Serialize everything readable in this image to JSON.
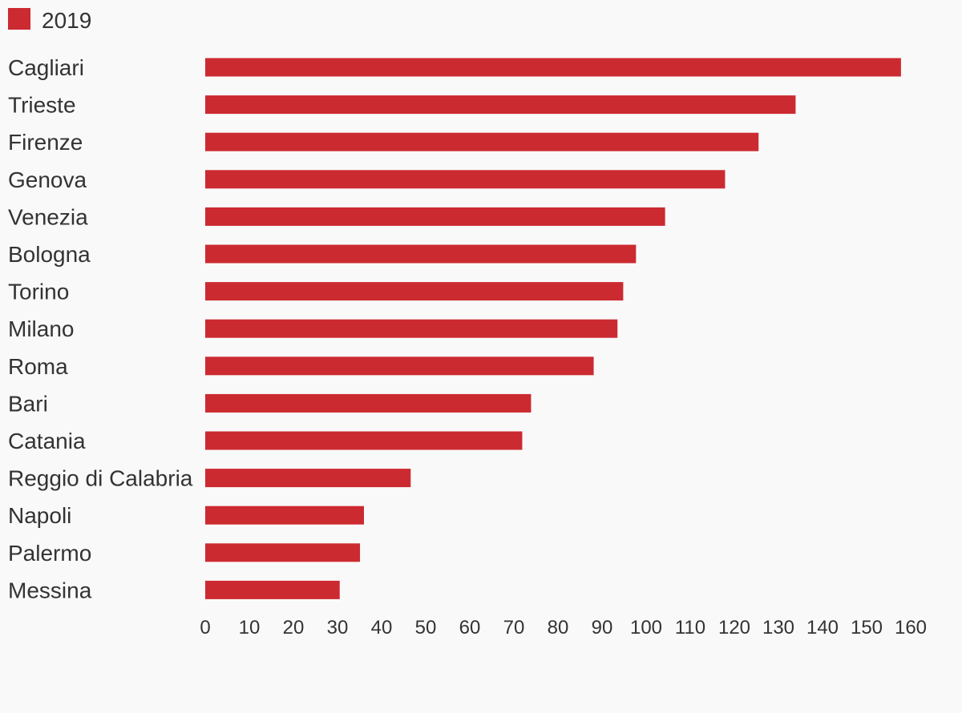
{
  "chart_data": {
    "type": "bar",
    "orientation": "horizontal",
    "title": "",
    "xlabel": "",
    "ylabel": "",
    "legend_position": "top-left",
    "grid": false,
    "xlim": [
      0,
      160
    ],
    "x_ticks": [
      "0",
      "10",
      "20",
      "30",
      "40",
      "50",
      "60",
      "70",
      "80",
      "90",
      "100",
      "110",
      "120",
      "130",
      "140",
      "150",
      "160"
    ],
    "categories": [
      "Cagliari",
      "Trieste",
      "Firenze",
      "Genova",
      "Venezia",
      "Bologna",
      "Torino",
      "Milano",
      "Roma",
      "Bari",
      "Catania",
      "Reggio di Calabria",
      "Napoli",
      "Palermo",
      "Messina"
    ],
    "series": [
      {
        "name": "2019",
        "color": "#cc2a31",
        "values": [
          157.8,
          133.9,
          125.5,
          117.9,
          104.3,
          97.7,
          94.8,
          93.5,
          88.1,
          73.9,
          71.9,
          46.6,
          36.0,
          35.1,
          30.5
        ]
      }
    ]
  }
}
